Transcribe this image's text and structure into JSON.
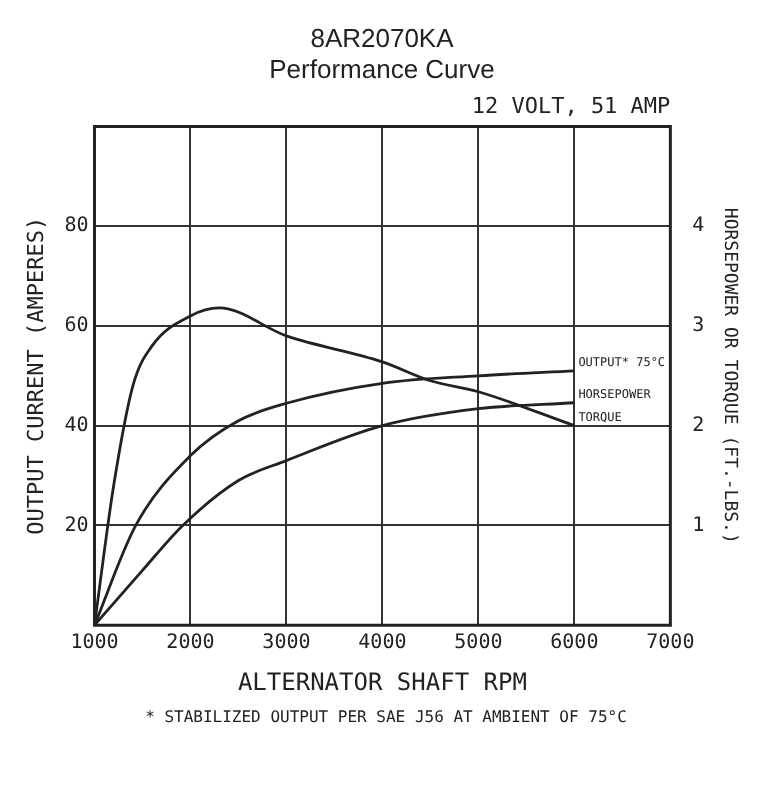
{
  "chart_data": {
    "type": "line",
    "title": "8AR2070KA",
    "subtitle": "Performance Curve",
    "xlabel": "ALTERNATOR SHAFT RPM",
    "ylabel": "OUTPUT CURRENT (AMPERES)",
    "y2label": "HORSEPOWER OR TORQUE (FT.-LBS.)",
    "annotations": [
      "12 VOLT, 51 AMP",
      "* STABILIZED OUTPUT PER SAE J56 AT AMBIENT OF 75°C"
    ],
    "xlim": [
      1000,
      7000
    ],
    "xticks": [
      1000,
      2000,
      3000,
      4000,
      5000,
      6000,
      7000
    ],
    "ylim": [
      0,
      100
    ],
    "yticks": [
      20,
      40,
      60,
      80
    ],
    "y2lim": [
      0,
      5
    ],
    "y2ticks": [
      1,
      2,
      3,
      4
    ],
    "grid": true,
    "legend": false,
    "marker": "none",
    "line_style": "solid",
    "series": [
      {
        "name": "TORQUE",
        "color": "#222222",
        "axis": "y2",
        "x": [
          1000,
          1200,
          1400,
          1600,
          2000,
          2300,
          3000,
          4000,
          4500,
          5000,
          6000
        ],
        "values": [
          0,
          1.4,
          2.4,
          2.8,
          3.1,
          3.18,
          2.9,
          2.64,
          2.45,
          2.34,
          2.0
        ]
      },
      {
        "name": "OUTPUT* 75°C",
        "color": "#222222",
        "x": [
          1000,
          1430,
          2000,
          2500,
          3000,
          4000,
          5000,
          6000
        ],
        "values": [
          0,
          20,
          34,
          41,
          44.5,
          48.5,
          50,
          51
        ]
      },
      {
        "name": "HORSEPOWER",
        "color": "#222222",
        "axis": "y2",
        "x": [
          1000,
          1500,
          1920,
          2500,
          3000,
          4000,
          5000,
          6000
        ],
        "values": [
          0,
          0.55,
          1.0,
          1.45,
          1.65,
          2.0,
          2.17,
          2.23
        ]
      }
    ]
  }
}
